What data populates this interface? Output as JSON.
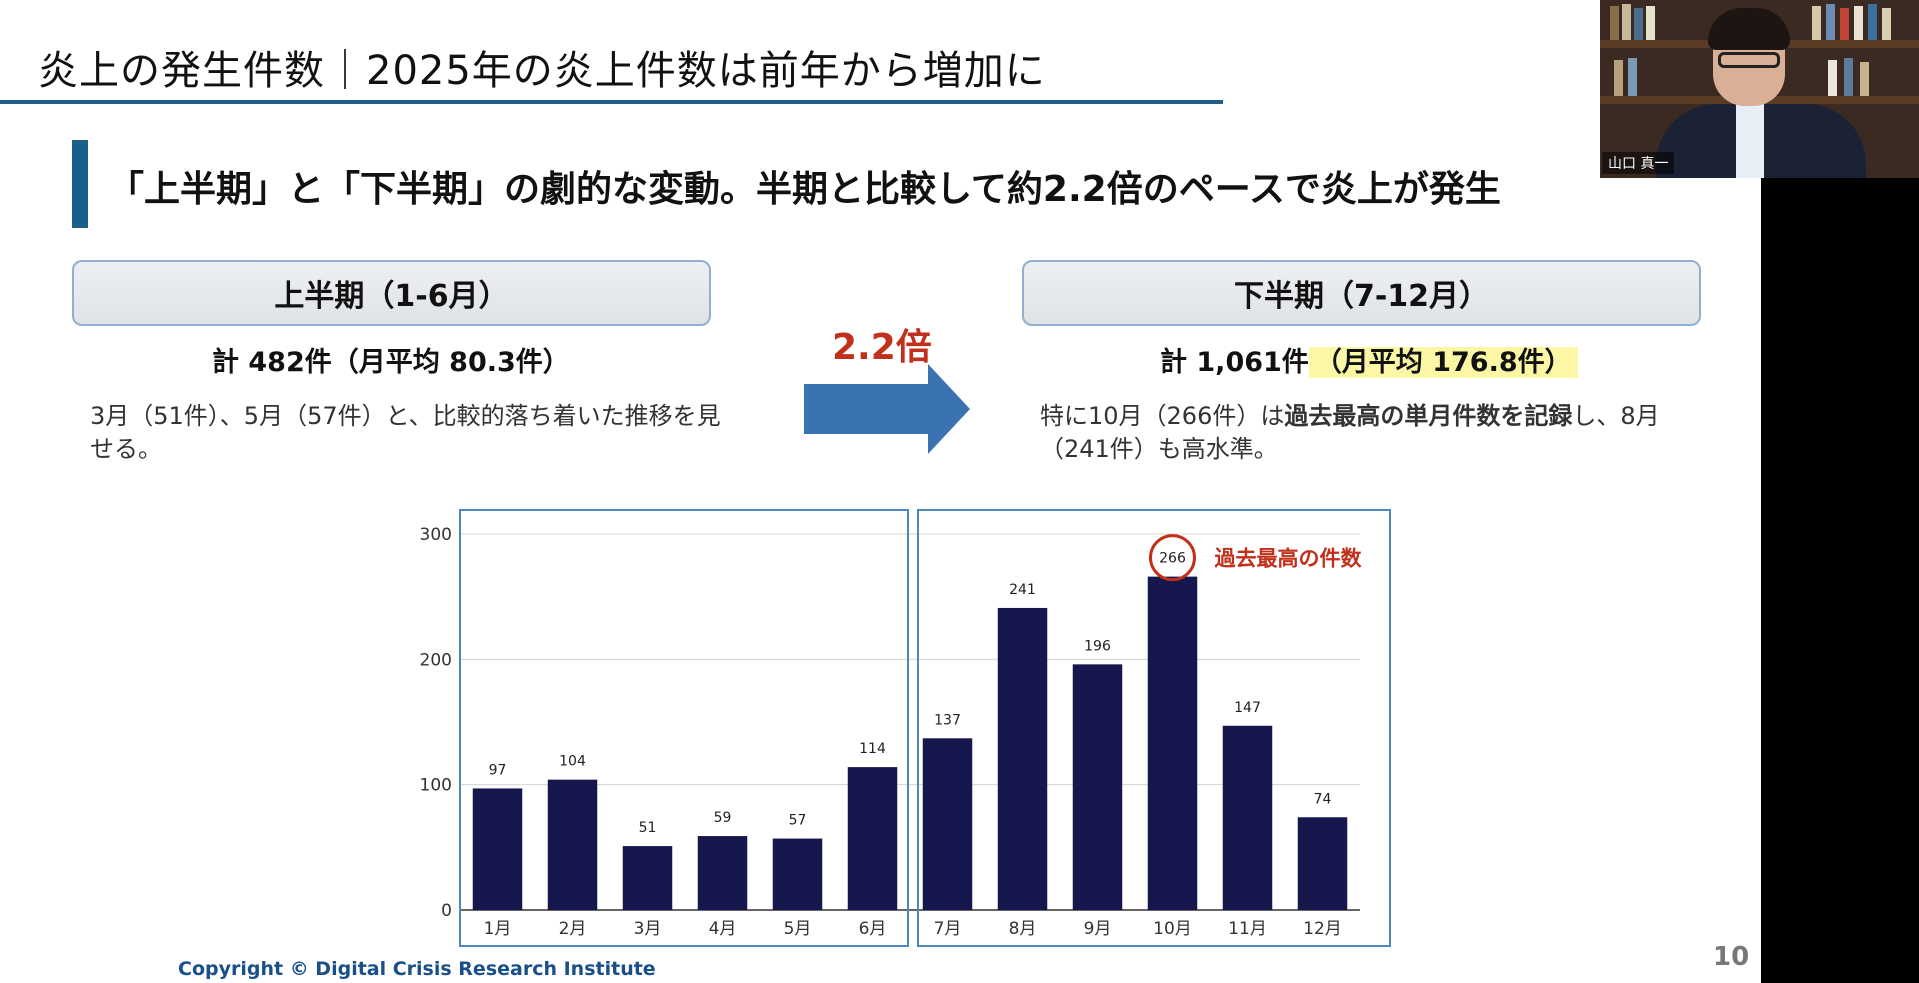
{
  "slide": {
    "title": "炎上の発生件数｜2025年の炎上件数は前年から増加に",
    "subtitle": "「上半期」と「下半期」の劇的な変動。半期と比較して約2.2倍のペースで炎上が発生",
    "h1": {
      "label": "上半期（1-6月）",
      "total": "計 482件（月平均 80.3件）",
      "desc": "3月（51件）、5月（57件）と、比較的落ち着いた推移を見せる。"
    },
    "h2": {
      "label": "下半期（7-12月）",
      "total_prefix": "計 1,061件",
      "total_highlight": "（月平均 176.8件）",
      "desc_a": "特に10月（266件）は",
      "desc_bold": "過去最高の単月件数を記録",
      "desc_b": "し、8月（241件）も高水準。"
    },
    "ratio": "2.2倍",
    "copyright": "Copyright © Digital Crisis Research Institute",
    "page_number": "10"
  },
  "webcam": {
    "participant_name": "山口 真一"
  },
  "chart_data": {
    "type": "bar",
    "categories": [
      "1月",
      "2月",
      "3月",
      "4月",
      "5月",
      "6月",
      "7月",
      "8月",
      "9月",
      "10月",
      "11月",
      "12月"
    ],
    "values": [
      97,
      104,
      51,
      59,
      57,
      114,
      137,
      241,
      196,
      266,
      147,
      74
    ],
    "ylim": [
      0,
      300
    ],
    "yticks": [
      0,
      100,
      200,
      300
    ],
    "grid": true,
    "annotation": "過去最高の件数",
    "highlight_index": 9,
    "colors": {
      "bar": "#16184d",
      "frame": "#4f87bf",
      "grid": "#d5d5d5",
      "accent": "#c0301a"
    }
  }
}
